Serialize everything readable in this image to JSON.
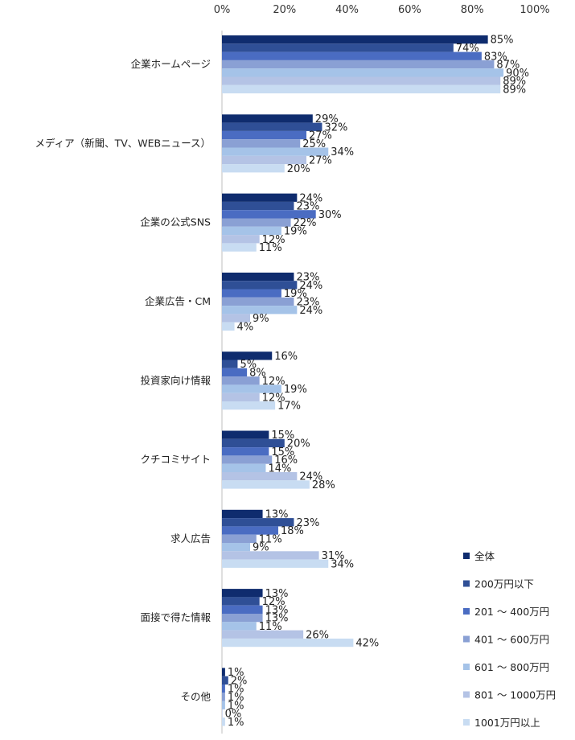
{
  "chart_data": {
    "type": "bar",
    "orientation": "horizontal",
    "xlim": [
      0,
      100
    ],
    "x_ticks": [
      "0%",
      "20%",
      "40%",
      "60%",
      "80%",
      "100%"
    ],
    "value_suffix": "%",
    "grid": false,
    "legend_position": "bottom-right",
    "categories": [
      "企業ホームページ",
      "メディア（新聞、TV、WEBニュース）",
      "企業の公式SNS",
      "企業広告・CM",
      "投資家向け情報",
      "クチコミサイト",
      "求人広告",
      "面接で得た情報",
      "その他"
    ],
    "series": [
      {
        "name": "全体",
        "color": "#0f2c6e",
        "values": [
          85,
          29,
          24,
          23,
          16,
          15,
          13,
          13,
          1
        ]
      },
      {
        "name": "200万円以下",
        "color": "#2f4f96",
        "values": [
          74,
          32,
          23,
          24,
          5,
          20,
          23,
          12,
          2
        ]
      },
      {
        "name": "201 ～ 400万円",
        "color": "#4a6cc2",
        "values": [
          83,
          27,
          30,
          19,
          8,
          15,
          18,
          13,
          1
        ]
      },
      {
        "name": "401 ～ 600万円",
        "color": "#8aa0d4",
        "values": [
          87,
          25,
          22,
          23,
          12,
          16,
          11,
          13,
          1
        ]
      },
      {
        "name": "601 ～ 800万円",
        "color": "#a5c3e8",
        "values": [
          90,
          34,
          19,
          24,
          19,
          14,
          9,
          11,
          1
        ]
      },
      {
        "name": "801 ～ 1000万円",
        "color": "#b4c3e5",
        "values": [
          89,
          27,
          12,
          9,
          12,
          24,
          31,
          26,
          0
        ]
      },
      {
        "name": "1001万円以上",
        "color": "#c8dcf2",
        "values": [
          89,
          20,
          11,
          4,
          17,
          28,
          34,
          42,
          1
        ]
      }
    ]
  }
}
